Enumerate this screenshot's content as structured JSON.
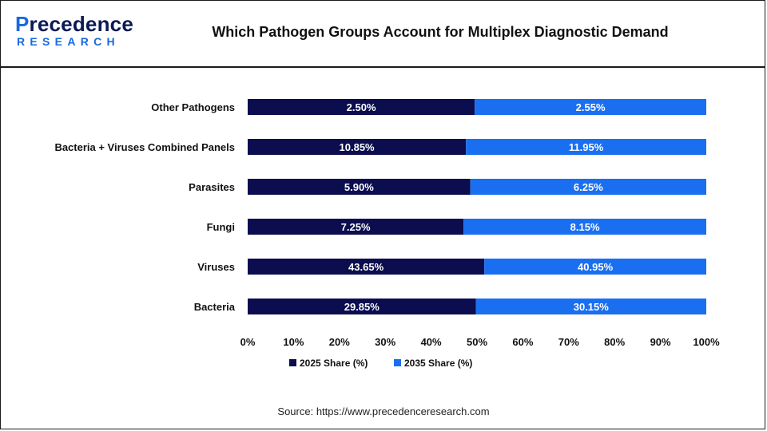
{
  "header": {
    "logo_text": "Precedence",
    "logo_sub": "RESEARCH",
    "title": "Which Pathogen Groups Account for Multiplex Diagnostic Demand"
  },
  "footer": {
    "source": "Source: https://www.precedenceresearch.com"
  },
  "colors": {
    "series_2025": "#0b0d4f",
    "series_2035": "#1a6ff0"
  },
  "chart_data": {
    "type": "bar",
    "orientation": "horizontal",
    "stacked": "100%",
    "title": "Which Pathogen Groups Account for Multiplex Diagnostic Demand",
    "categories": [
      "Bacteria",
      "Viruses",
      "Fungi",
      "Parasites",
      "Bacteria + Viruses Combined Panels",
      "Other Pathogens"
    ],
    "series": [
      {
        "name": "2025 Share (%)",
        "values": [
          29.85,
          43.65,
          7.25,
          5.9,
          10.85,
          2.5
        ],
        "labels": [
          "29.85%",
          "43.65%",
          "7.25%",
          "5.90%",
          "10.85%",
          "2.50%"
        ]
      },
      {
        "name": "2035 Share (%)",
        "values": [
          30.15,
          40.95,
          8.15,
          6.25,
          11.95,
          2.55
        ],
        "labels": [
          "30.15%",
          "40.95%",
          "8.15%",
          "6.25%",
          "11.95%",
          "2.55%"
        ]
      }
    ],
    "xlim": [
      0,
      100
    ],
    "xticks": [
      "0%",
      "10%",
      "20%",
      "30%",
      "40%",
      "50%",
      "60%",
      "70%",
      "80%",
      "90%",
      "100%"
    ],
    "legend_position": "bottom",
    "grid": false
  }
}
